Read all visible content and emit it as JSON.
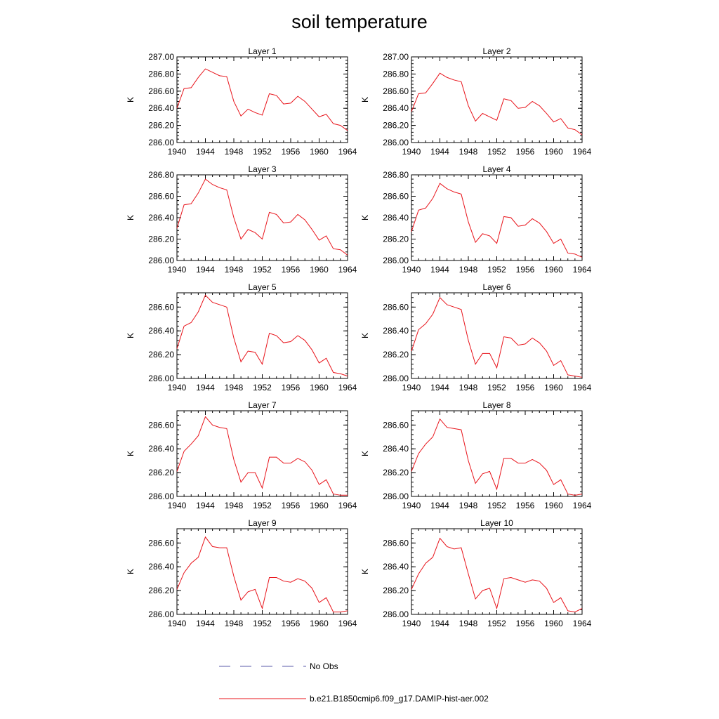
{
  "chart_data": {
    "title": "soil temperature",
    "type": "line",
    "xlim": [
      1940,
      1964
    ],
    "x_ticks": [
      1940,
      1944,
      1948,
      1952,
      1956,
      1960,
      1964
    ],
    "ylabel": "K",
    "years": [
      1940,
      1941,
      1942,
      1943,
      1944,
      1945,
      1946,
      1947,
      1948,
      1949,
      1950,
      1951,
      1952,
      1953,
      1954,
      1955,
      1956,
      1957,
      1958,
      1959,
      1960,
      1961,
      1962,
      1963,
      1964
    ],
    "series_color": "#e8141b",
    "obs_color": "#5a5aa8",
    "legend": [
      {
        "label": "No Obs",
        "style": "dashed",
        "color": "#5a5aa8"
      },
      {
        "label": "b.e21.B1850cmip6.f09_g17.DAMIP-hist-aer.002",
        "style": "solid",
        "color": "#e8141b"
      }
    ],
    "panels": [
      {
        "title": "Layer 1",
        "ylim": [
          286.0,
          287.0
        ],
        "y_ticks": [
          "286.00",
          "286.20",
          "286.40",
          "286.60",
          "286.80",
          "287.00"
        ],
        "values": [
          286.4,
          286.63,
          286.64,
          286.76,
          286.86,
          286.82,
          286.78,
          286.77,
          286.48,
          286.31,
          286.39,
          286.35,
          286.32,
          286.57,
          286.55,
          286.45,
          286.46,
          286.54,
          286.48,
          286.39,
          286.3,
          286.33,
          286.22,
          286.2,
          286.14
        ]
      },
      {
        "title": "Layer 2",
        "ylim": [
          286.0,
          287.0
        ],
        "y_ticks": [
          "286.00",
          "286.20",
          "286.40",
          "286.60",
          "286.80",
          "287.00"
        ],
        "values": [
          286.36,
          286.57,
          286.58,
          286.69,
          286.81,
          286.76,
          286.73,
          286.71,
          286.43,
          286.25,
          286.34,
          286.3,
          286.26,
          286.51,
          286.49,
          286.4,
          286.41,
          286.48,
          286.43,
          286.34,
          286.24,
          286.28,
          286.17,
          286.15,
          286.09
        ]
      },
      {
        "title": "Layer 3",
        "ylim": [
          286.0,
          286.8
        ],
        "y_ticks": [
          "286.00",
          "286.20",
          "286.40",
          "286.60",
          "286.80"
        ],
        "values": [
          286.3,
          286.52,
          286.53,
          286.63,
          286.76,
          286.71,
          286.68,
          286.66,
          286.4,
          286.2,
          286.29,
          286.26,
          286.2,
          286.45,
          286.43,
          286.35,
          286.36,
          286.43,
          286.38,
          286.29,
          286.19,
          286.23,
          286.11,
          286.1,
          286.05
        ]
      },
      {
        "title": "Layer 4",
        "ylim": [
          286.0,
          286.8
        ],
        "y_ticks": [
          "286.00",
          "286.20",
          "286.40",
          "286.60",
          "286.80"
        ],
        "values": [
          286.27,
          286.47,
          286.49,
          286.58,
          286.72,
          286.67,
          286.64,
          286.62,
          286.36,
          286.17,
          286.25,
          286.23,
          286.16,
          286.41,
          286.4,
          286.32,
          286.33,
          286.39,
          286.35,
          286.27,
          286.16,
          286.2,
          286.07,
          286.06,
          286.03
        ]
      },
      {
        "title": "Layer 5",
        "ylim": [
          286.0,
          286.72
        ],
        "y_ticks": [
          "286.00",
          "286.20",
          "286.40",
          "286.60"
        ],
        "values": [
          286.25,
          286.44,
          286.47,
          286.56,
          286.7,
          286.64,
          286.62,
          286.6,
          286.34,
          286.14,
          286.23,
          286.22,
          286.12,
          286.38,
          286.36,
          286.3,
          286.31,
          286.36,
          286.32,
          286.24,
          286.13,
          286.17,
          286.05,
          286.04,
          286.02
        ]
      },
      {
        "title": "Layer 6",
        "ylim": [
          286.0,
          286.72
        ],
        "y_ticks": [
          "286.00",
          "286.20",
          "286.40",
          "286.60"
        ],
        "values": [
          286.23,
          286.41,
          286.46,
          286.54,
          286.68,
          286.62,
          286.6,
          286.58,
          286.32,
          286.12,
          286.21,
          286.21,
          286.09,
          286.35,
          286.34,
          286.28,
          286.29,
          286.34,
          286.3,
          286.23,
          286.11,
          286.15,
          286.03,
          286.02,
          286.01
        ]
      },
      {
        "title": "Layer 7",
        "ylim": [
          286.0,
          286.72
        ],
        "y_ticks": [
          "286.00",
          "286.20",
          "286.40",
          "286.60"
        ],
        "values": [
          286.21,
          286.38,
          286.44,
          286.51,
          286.67,
          286.6,
          286.58,
          286.57,
          286.31,
          286.12,
          286.2,
          286.2,
          286.07,
          286.33,
          286.33,
          286.28,
          286.28,
          286.32,
          286.29,
          286.22,
          286.1,
          286.14,
          286.02,
          286.01,
          286.01
        ]
      },
      {
        "title": "Layer 8",
        "ylim": [
          286.0,
          286.72
        ],
        "y_ticks": [
          "286.00",
          "286.20",
          "286.40",
          "286.60"
        ],
        "values": [
          286.21,
          286.36,
          286.44,
          286.5,
          286.65,
          286.58,
          286.57,
          286.56,
          286.3,
          286.11,
          286.19,
          286.21,
          286.06,
          286.32,
          286.32,
          286.28,
          286.28,
          286.31,
          286.28,
          286.22,
          286.1,
          286.14,
          286.02,
          286.01,
          286.02
        ]
      },
      {
        "title": "Layer 9",
        "ylim": [
          286.0,
          286.72
        ],
        "y_ticks": [
          "286.00",
          "286.20",
          "286.40",
          "286.60"
        ],
        "values": [
          286.21,
          286.35,
          286.43,
          286.48,
          286.65,
          286.57,
          286.56,
          286.56,
          286.32,
          286.12,
          286.19,
          286.21,
          286.05,
          286.31,
          286.31,
          286.28,
          286.27,
          286.3,
          286.28,
          286.22,
          286.1,
          286.14,
          286.02,
          286.02,
          286.03
        ]
      },
      {
        "title": "Layer 10",
        "ylim": [
          286.0,
          286.72
        ],
        "y_ticks": [
          "286.00",
          "286.20",
          "286.40",
          "286.60"
        ],
        "values": [
          286.21,
          286.34,
          286.43,
          286.48,
          286.64,
          286.57,
          286.55,
          286.56,
          286.34,
          286.13,
          286.2,
          286.22,
          286.05,
          286.3,
          286.31,
          286.29,
          286.27,
          286.29,
          286.28,
          286.22,
          286.1,
          286.14,
          286.03,
          286.02,
          286.05
        ]
      }
    ]
  }
}
